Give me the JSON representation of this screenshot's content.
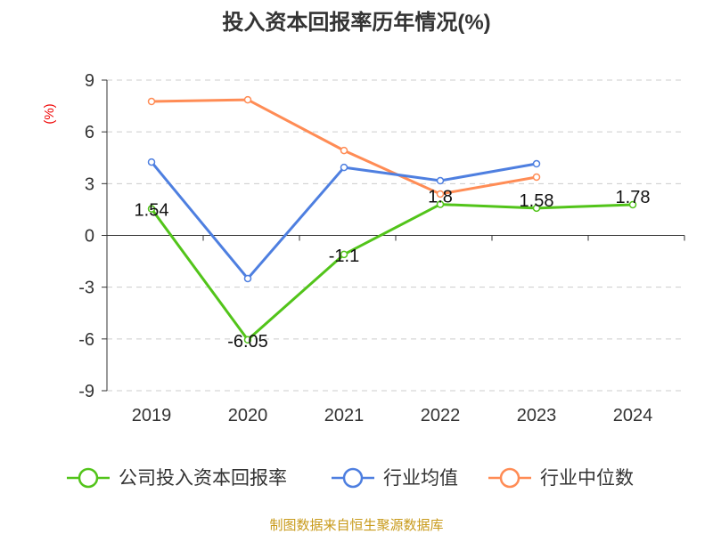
{
  "chart_data": {
    "type": "line",
    "title": "投入资本回报率历年情况(%)",
    "ylabel": "(%)",
    "xlabel": "",
    "categories": [
      "2019",
      "2020",
      "2021",
      "2022",
      "2023",
      "2024"
    ],
    "ylim": [
      -9,
      9
    ],
    "yticks": [
      9,
      6,
      3,
      0,
      -3,
      -6,
      -9
    ],
    "grid": true,
    "legend_position": "bottom",
    "series": [
      {
        "name": "公司投入资本回报率",
        "color": "#52c41a",
        "values": [
          1.54,
          -6.05,
          -1.1,
          1.8,
          1.58,
          1.78
        ],
        "labels": [
          "1.54",
          "-6.05",
          "-1.1",
          "1.8",
          "1.58",
          "1.78"
        ]
      },
      {
        "name": "行业均值",
        "color": "#4e7fe0",
        "values": [
          4.25,
          -2.5,
          3.94,
          3.17,
          4.15,
          null
        ]
      },
      {
        "name": "行业中位数",
        "color": "#ff8c55",
        "values": [
          7.76,
          7.86,
          4.92,
          2.4,
          3.38,
          null
        ]
      }
    ],
    "source": "制图数据来自恒生聚源数据库"
  }
}
